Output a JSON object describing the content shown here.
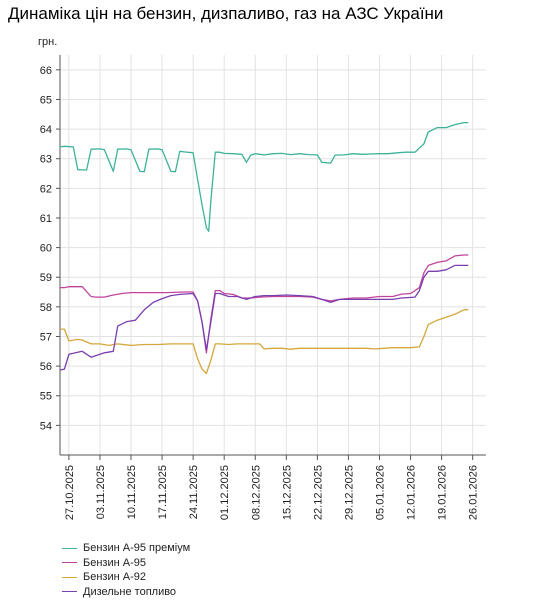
{
  "chart_data": {
    "type": "line",
    "title": "Динаміка цін на бензин, дизпаливо, газ на АЗС України",
    "ylabel": "грн.",
    "xlabel": "",
    "ylim": [
      53,
      66.5
    ],
    "yticks": [
      54,
      55,
      56,
      57,
      58,
      59,
      60,
      61,
      62,
      63,
      64,
      65,
      66
    ],
    "xlim": [
      "2025-10-25",
      "2026-01-29"
    ],
    "xticks": [
      "27.10.2025",
      "03.11.2025",
      "10.11.2025",
      "17.11.2025",
      "24.11.2025",
      "01.12.2025",
      "08.12.2025",
      "15.12.2025",
      "22.12.2025",
      "29.12.2025",
      "05.01.2026",
      "12.01.2026",
      "19.01.2026",
      "26.01.2026"
    ],
    "grid": true,
    "legend_position": "bottom-left",
    "series": [
      {
        "name": "Бензин А-95 преміум",
        "color": "#3cb39a",
        "points": [
          [
            "2025-10-25",
            63.4
          ],
          [
            "2025-10-26",
            63.42
          ],
          [
            "2025-10-28",
            63.4
          ],
          [
            "2025-10-29",
            62.63
          ],
          [
            "2025-10-31",
            62.62
          ],
          [
            "2025-11-01",
            63.32
          ],
          [
            "2025-11-03",
            63.33
          ],
          [
            "2025-11-04",
            63.3
          ],
          [
            "2025-11-06",
            62.57
          ],
          [
            "2025-11-07",
            63.32
          ],
          [
            "2025-11-09",
            63.33
          ],
          [
            "2025-11-10",
            63.3
          ],
          [
            "2025-11-12",
            62.57
          ],
          [
            "2025-11-13",
            62.56
          ],
          [
            "2025-11-14",
            63.32
          ],
          [
            "2025-11-16",
            63.33
          ],
          [
            "2025-11-17",
            63.3
          ],
          [
            "2025-11-19",
            62.57
          ],
          [
            "2025-11-20",
            62.56
          ],
          [
            "2025-11-21",
            63.25
          ],
          [
            "2025-11-22",
            63.23
          ],
          [
            "2025-11-24",
            63.2
          ],
          [
            "2025-11-25",
            62.3
          ],
          [
            "2025-11-26",
            61.45
          ],
          [
            "2025-11-27",
            60.67
          ],
          [
            "2025-11-27.5",
            60.55
          ],
          [
            "2025-11-28",
            61.6
          ],
          [
            "2025-11-29",
            63.22
          ],
          [
            "2025-11-30",
            63.22
          ],
          [
            "2025-12-01",
            63.18
          ],
          [
            "2025-12-03",
            63.17
          ],
          [
            "2025-12-05",
            63.15
          ],
          [
            "2025-12-06",
            62.88
          ],
          [
            "2025-12-07",
            63.12
          ],
          [
            "2025-12-08",
            63.17
          ],
          [
            "2025-12-10",
            63.13
          ],
          [
            "2025-12-12",
            63.17
          ],
          [
            "2025-12-14",
            63.18
          ],
          [
            "2025-12-16",
            63.14
          ],
          [
            "2025-12-18",
            63.17
          ],
          [
            "2025-12-20",
            63.14
          ],
          [
            "2025-12-22",
            63.13
          ],
          [
            "2025-12-23",
            62.88
          ],
          [
            "2025-12-25",
            62.85
          ],
          [
            "2025-12-26",
            63.12
          ],
          [
            "2025-12-28",
            63.13
          ],
          [
            "2025-12-30",
            63.17
          ],
          [
            "2026-01-01",
            63.15
          ],
          [
            "2026-01-03",
            63.16
          ],
          [
            "2026-01-05",
            63.17
          ],
          [
            "2026-01-07",
            63.17
          ],
          [
            "2026-01-09",
            63.2
          ],
          [
            "2026-01-11",
            63.22
          ],
          [
            "2026-01-13",
            63.22
          ],
          [
            "2026-01-15",
            63.5
          ],
          [
            "2026-01-16",
            63.9
          ],
          [
            "2026-01-18",
            64.05
          ],
          [
            "2026-01-20",
            64.05
          ],
          [
            "2026-01-22",
            64.15
          ],
          [
            "2026-01-24",
            64.22
          ],
          [
            "2026-01-25",
            64.22
          ]
        ]
      },
      {
        "name": "Бензин А-95",
        "color": "#c2449a",
        "points": [
          [
            "2025-10-25",
            58.65
          ],
          [
            "2025-10-26",
            58.65
          ],
          [
            "2025-10-27",
            58.68
          ],
          [
            "2025-10-30",
            58.68
          ],
          [
            "2025-11-01",
            58.35
          ],
          [
            "2025-11-02",
            58.33
          ],
          [
            "2025-11-04",
            58.33
          ],
          [
            "2025-11-06",
            58.4
          ],
          [
            "2025-11-08",
            58.45
          ],
          [
            "2025-11-10",
            58.48
          ],
          [
            "2025-11-14",
            58.48
          ],
          [
            "2025-11-18",
            58.48
          ],
          [
            "2025-11-22",
            58.5
          ],
          [
            "2025-11-24",
            58.5
          ],
          [
            "2025-11-25",
            58.2
          ],
          [
            "2025-11-26",
            57.5
          ],
          [
            "2025-11-27",
            56.45
          ],
          [
            "2025-11-28",
            57.6
          ],
          [
            "2025-11-29",
            58.55
          ],
          [
            "2025-11-30",
            58.55
          ],
          [
            "2025-12-01",
            58.45
          ],
          [
            "2025-12-03",
            58.42
          ],
          [
            "2025-12-05",
            58.3
          ],
          [
            "2025-12-07",
            58.3
          ],
          [
            "2025-12-09",
            58.33
          ],
          [
            "2025-12-12",
            58.35
          ],
          [
            "2025-12-15",
            58.35
          ],
          [
            "2025-12-18",
            58.35
          ],
          [
            "2025-12-21",
            58.33
          ],
          [
            "2025-12-23",
            58.25
          ],
          [
            "2025-12-25",
            58.2
          ],
          [
            "2025-12-27",
            58.25
          ],
          [
            "2025-12-30",
            58.3
          ],
          [
            "2026-01-02",
            58.3
          ],
          [
            "2026-01-05",
            58.35
          ],
          [
            "2026-01-08",
            58.35
          ],
          [
            "2026-01-10",
            58.43
          ],
          [
            "2026-01-12",
            58.45
          ],
          [
            "2026-01-14",
            58.65
          ],
          [
            "2026-01-15",
            59.15
          ],
          [
            "2026-01-16",
            59.4
          ],
          [
            "2026-01-18",
            59.5
          ],
          [
            "2026-01-20",
            59.55
          ],
          [
            "2026-01-22",
            59.72
          ],
          [
            "2026-01-24",
            59.75
          ],
          [
            "2026-01-25",
            59.75
          ]
        ]
      },
      {
        "name": "Бензин А-92",
        "color": "#d4a73a",
        "points": [
          [
            "2025-10-25",
            57.25
          ],
          [
            "2025-10-26",
            57.25
          ],
          [
            "2025-10-27",
            56.85
          ],
          [
            "2025-10-29",
            56.9
          ],
          [
            "2025-10-30",
            56.88
          ],
          [
            "2025-11-01",
            56.75
          ],
          [
            "2025-11-03",
            56.75
          ],
          [
            "2025-11-05",
            56.7
          ],
          [
            "2025-11-07",
            56.75
          ],
          [
            "2025-11-10",
            56.7
          ],
          [
            "2025-11-13",
            56.73
          ],
          [
            "2025-11-16",
            56.73
          ],
          [
            "2025-11-19",
            56.75
          ],
          [
            "2025-11-22",
            56.75
          ],
          [
            "2025-11-24",
            56.75
          ],
          [
            "2025-11-25",
            56.25
          ],
          [
            "2025-11-26",
            55.9
          ],
          [
            "2025-11-27",
            55.75
          ],
          [
            "2025-11-28",
            56.2
          ],
          [
            "2025-11-29",
            56.75
          ],
          [
            "2025-11-30",
            56.75
          ],
          [
            "2025-12-02",
            56.73
          ],
          [
            "2025-12-04",
            56.75
          ],
          [
            "2025-12-07",
            56.75
          ],
          [
            "2025-12-09",
            56.75
          ],
          [
            "2025-12-10",
            56.58
          ],
          [
            "2025-12-12",
            56.6
          ],
          [
            "2025-12-14",
            56.6
          ],
          [
            "2025-12-16",
            56.57
          ],
          [
            "2025-12-18",
            56.6
          ],
          [
            "2025-12-21",
            56.6
          ],
          [
            "2025-12-24",
            56.6
          ],
          [
            "2025-12-27",
            56.6
          ],
          [
            "2025-12-30",
            56.6
          ],
          [
            "2026-01-02",
            56.6
          ],
          [
            "2026-01-04",
            56.58
          ],
          [
            "2026-01-06",
            56.6
          ],
          [
            "2026-01-08",
            56.62
          ],
          [
            "2026-01-10",
            56.62
          ],
          [
            "2026-01-12",
            56.62
          ],
          [
            "2026-01-14",
            56.65
          ],
          [
            "2026-01-15",
            57.0
          ],
          [
            "2026-01-16",
            57.4
          ],
          [
            "2026-01-18",
            57.55
          ],
          [
            "2026-01-20",
            57.65
          ],
          [
            "2026-01-22",
            57.75
          ],
          [
            "2026-01-24",
            57.9
          ],
          [
            "2026-01-25",
            57.9
          ]
        ]
      },
      {
        "name": "Дизельне топливо",
        "color": "#7a3fb0",
        "points": [
          [
            "2025-10-25",
            55.87
          ],
          [
            "2025-10-26",
            55.9
          ],
          [
            "2025-10-27",
            56.4
          ],
          [
            "2025-10-29",
            56.47
          ],
          [
            "2025-10-30",
            56.5
          ],
          [
            "2025-11-01",
            56.3
          ],
          [
            "2025-11-02",
            56.35
          ],
          [
            "2025-11-04",
            56.45
          ],
          [
            "2025-11-06",
            56.5
          ],
          [
            "2025-11-07",
            57.35
          ],
          [
            "2025-11-09",
            57.5
          ],
          [
            "2025-11-11",
            57.55
          ],
          [
            "2025-11-13",
            57.9
          ],
          [
            "2025-11-15",
            58.15
          ],
          [
            "2025-11-17",
            58.28
          ],
          [
            "2025-11-19",
            58.38
          ],
          [
            "2025-11-21",
            58.42
          ],
          [
            "2025-11-24",
            58.45
          ],
          [
            "2025-11-25",
            58.2
          ],
          [
            "2025-11-26",
            57.5
          ],
          [
            "2025-11-27",
            56.55
          ],
          [
            "2025-11-28",
            57.5
          ],
          [
            "2025-11-29",
            58.45
          ],
          [
            "2025-11-30",
            58.45
          ],
          [
            "2025-12-02",
            58.35
          ],
          [
            "2025-12-04",
            58.35
          ],
          [
            "2025-12-06",
            58.25
          ],
          [
            "2025-12-08",
            58.35
          ],
          [
            "2025-12-10",
            58.38
          ],
          [
            "2025-12-12",
            58.38
          ],
          [
            "2025-12-15",
            58.4
          ],
          [
            "2025-12-18",
            58.38
          ],
          [
            "2025-12-21",
            58.35
          ],
          [
            "2025-12-23",
            58.25
          ],
          [
            "2025-12-25",
            58.15
          ],
          [
            "2025-12-27",
            58.25
          ],
          [
            "2025-12-30",
            58.25
          ],
          [
            "2026-01-02",
            58.25
          ],
          [
            "2026-01-05",
            58.25
          ],
          [
            "2026-01-08",
            58.25
          ],
          [
            "2026-01-10",
            58.3
          ],
          [
            "2026-01-13",
            58.33
          ],
          [
            "2026-01-14",
            58.55
          ],
          [
            "2026-01-15",
            59.0
          ],
          [
            "2026-01-16",
            59.2
          ],
          [
            "2026-01-18",
            59.2
          ],
          [
            "2026-01-20",
            59.25
          ],
          [
            "2026-01-22",
            59.4
          ],
          [
            "2026-01-25",
            59.4
          ]
        ]
      }
    ]
  }
}
